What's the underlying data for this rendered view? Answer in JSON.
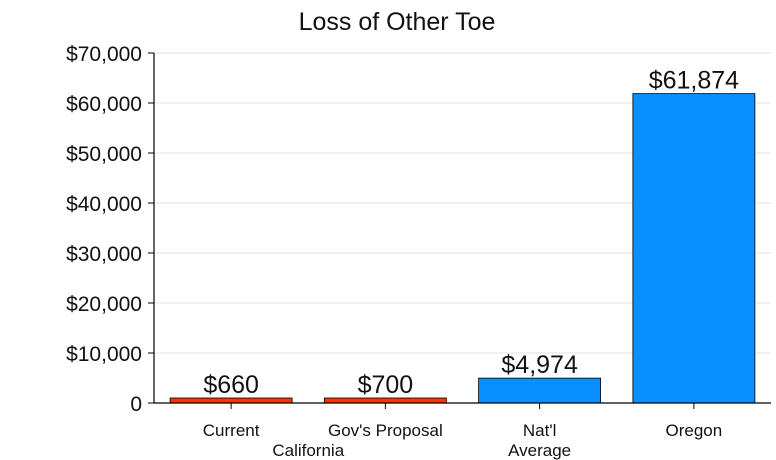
{
  "chart_data": {
    "type": "bar",
    "title": "Loss of Other Toe",
    "categories": [
      "Current",
      "Gov's Proposal",
      "Nat'l Average",
      "Oregon"
    ],
    "category_labels": [
      [
        "Current"
      ],
      [
        "Gov's Proposal"
      ],
      [
        "Nat'l",
        "Average"
      ],
      [
        "Oregon"
      ]
    ],
    "group_labels": [
      {
        "label": "California",
        "categories": [
          "Current",
          "Gov's Proposal"
        ]
      }
    ],
    "values": [
      660,
      700,
      4974,
      61874
    ],
    "data_labels": [
      "$660",
      "$700",
      "$4,974",
      "$61,874"
    ],
    "bar_colors": [
      "#ff3300",
      "#ff3300",
      "#0a8fff",
      "#0a8fff"
    ],
    "ylim": [
      0,
      70000
    ],
    "yticks": [
      0,
      10000,
      20000,
      30000,
      40000,
      50000,
      60000,
      70000
    ],
    "ytick_labels": [
      "0",
      "$10,000",
      "$20,000",
      "$30,000",
      "$40,000",
      "$50,000",
      "$60,000",
      "$70,000"
    ],
    "grid": true,
    "legend": false
  },
  "colors": {
    "red_bar": "#ff3300",
    "blue_bar": "#0a8fff",
    "grid": "#e0e0e0",
    "axis": "#000000"
  }
}
